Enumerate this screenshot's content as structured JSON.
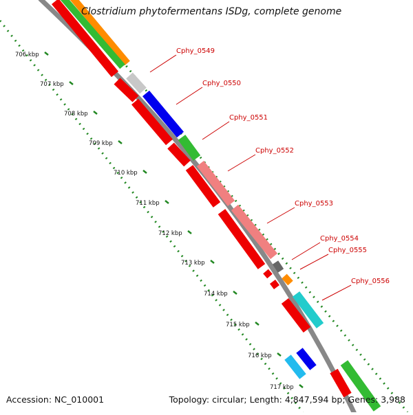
{
  "title": "Clostridium phytofermentans ISDg, complete genome",
  "footer": {
    "accession": "Accession: NC_010001",
    "summary": "Topology: circular; Length: 4,847,594 bp; Genes: 3,988"
  },
  "ticks": [
    "706 kbp",
    "707 kbp",
    "708 kbp",
    "709 kbp",
    "710 kbp",
    "711 kbp",
    "712 kbp",
    "713 kbp",
    "714 kbp",
    "715 kbp",
    "716 kbp",
    "717 kbp"
  ],
  "gene_labels": [
    "Cphy_0549",
    "Cphy_0550",
    "Cphy_0551",
    "Cphy_0552",
    "Cphy_0553",
    "Cphy_0554",
    "Cphy_0555",
    "Cphy_0556"
  ],
  "colors": {
    "red": "#ee0000",
    "orange": "#ff8c00",
    "green": "#33bb33",
    "blue": "#0000ee",
    "grey": "#c8c8c8",
    "darkgrey": "#666666",
    "pink": "#f08080",
    "cyan": "#22cccc",
    "lightblue": "#22bbee",
    "backbone": "#888888",
    "tick_green": "#228822",
    "label_red": "#cc0000"
  }
}
